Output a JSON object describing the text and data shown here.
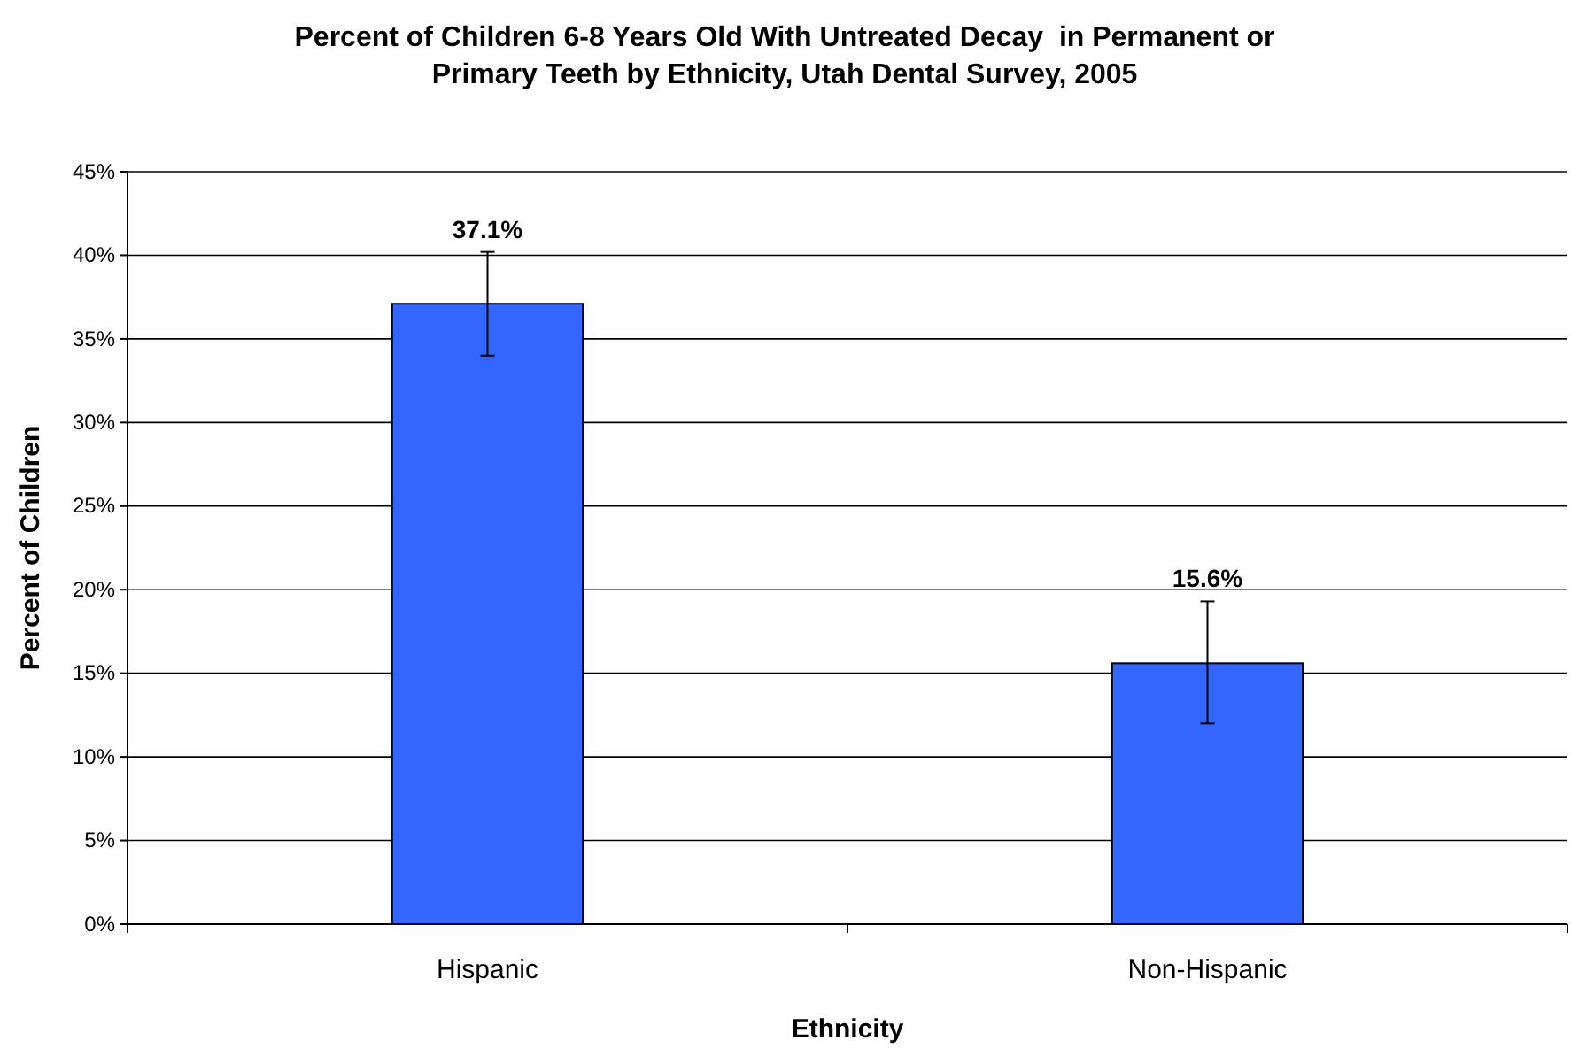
{
  "chart_data": {
    "type": "bar",
    "title": "Percent of Children 6-8 Years Old With Untreated Decay  in Permanent or Primary Teeth by Ethnicity, Utah Dental Survey, 2005",
    "xlabel": "Ethnicity",
    "ylabel": "Percent of Children",
    "categories": [
      "Hispanic",
      "Non-Hispanic"
    ],
    "values": [
      37.1,
      15.6
    ],
    "errors": [
      [
        34.0,
        40.2
      ],
      [
        12.0,
        19.3
      ]
    ],
    "value_labels": [
      "37.1%",
      "15.6%"
    ],
    "color": "#3366ff",
    "ylim": [
      0,
      45
    ],
    "yticks": [
      {
        "value": 0,
        "label": "0%"
      },
      {
        "value": 5,
        "label": "5%"
      },
      {
        "value": 10,
        "label": "10%"
      },
      {
        "value": 15,
        "label": "15%"
      },
      {
        "value": 20,
        "label": "20%"
      },
      {
        "value": 25,
        "label": "25%"
      },
      {
        "value": 30,
        "label": "30%"
      },
      {
        "value": 35,
        "label": "35%"
      },
      {
        "value": 40,
        "label": "40%"
      },
      {
        "value": 45,
        "label": "45%"
      }
    ],
    "grid": "y"
  }
}
